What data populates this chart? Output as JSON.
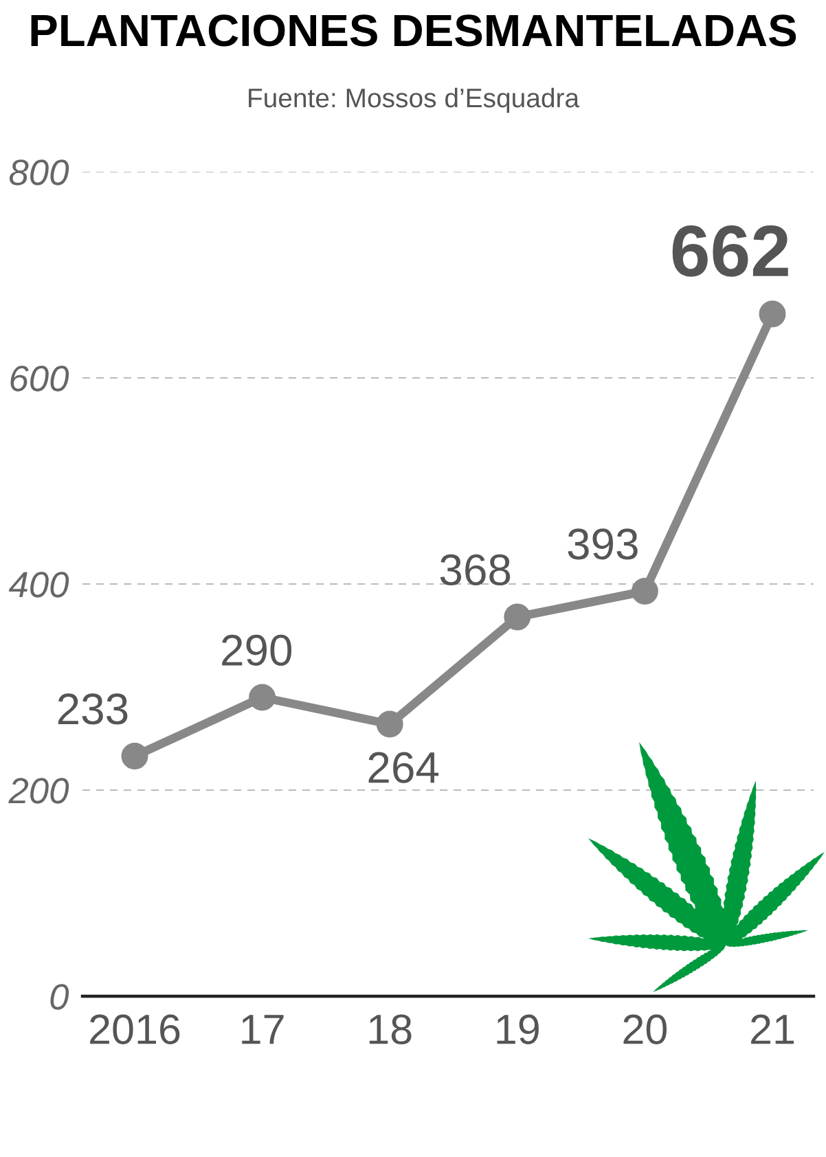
{
  "chart_data": {
    "type": "line",
    "title": "PLANTACIONES DESMANTELADAS",
    "subtitle": "Fuente: Mossos d’Esquadra",
    "categories": [
      "2016",
      "17",
      "18",
      "19",
      "20",
      "21"
    ],
    "series": [
      {
        "color": "#888888",
        "values": [
          233,
          290,
          264,
          368,
          393,
          662
        ]
      }
    ],
    "ylim": [
      0,
      800
    ],
    "yticks": [
      0,
      200,
      400,
      600,
      800
    ],
    "grid": "y",
    "marker": "circle",
    "line_style": "solid",
    "data_labels": true
  }
}
